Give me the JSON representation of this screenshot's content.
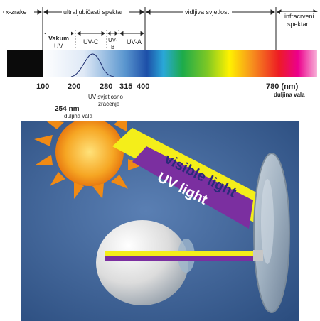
{
  "spectrum": {
    "regions": {
      "xray": "x-zrake",
      "uv": "ultraljubičasti spektar",
      "visible": "vidljiva svjetlost",
      "infrared_line1": "infracrveni",
      "infrared_line2": "spektar"
    },
    "uv_bands": {
      "vacuum_line1": "Vakum",
      "vacuum_line2": "UV",
      "uvc": "UV-C",
      "uvb_line1": "UV-",
      "uvb_line2": "B",
      "uva": "UV-A"
    },
    "ticks": [
      "100",
      "200",
      "280",
      "315",
      "400",
      "780 (nm)"
    ],
    "wavelength_label": "duljina vala",
    "uv_radiation_line1": "UV svjetlosno",
    "uv_radiation_line2": "zračenje",
    "peak_value": "254 nm",
    "peak_label": "duljina vala"
  },
  "scene": {
    "visible_beam_label": "visible light",
    "uv_beam_label": "UV light"
  },
  "colors": {
    "background_blue": "#3b5f91",
    "visible_beam": "#f4ee1a",
    "uv_beam": "#7b2fa0",
    "sun": "#f08a14"
  }
}
